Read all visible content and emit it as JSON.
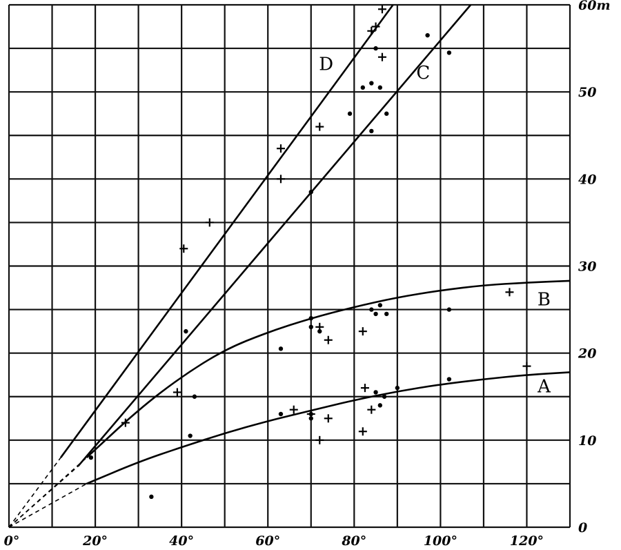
{
  "chart_data": {
    "type": "scatter",
    "title": "",
    "xlabel": "",
    "ylabel": "",
    "xlim": [
      0,
      130
    ],
    "ylim": [
      0,
      60
    ],
    "grid": true,
    "x_ticks": [
      "0°",
      "20°",
      "40°",
      "60°",
      "80°",
      "100°",
      "120°"
    ],
    "x_tick_values": [
      0,
      20,
      40,
      60,
      80,
      100,
      120
    ],
    "y_ticks": [
      "0",
      "10",
      "20",
      "30",
      "40",
      "50",
      "60m"
    ],
    "y_tick_values": [
      0,
      10,
      20,
      30,
      40,
      50,
      60
    ],
    "curves": [
      {
        "label": "A",
        "label_at": [
          124,
          15.5
        ],
        "x": [
          18,
          30,
          40,
          50,
          60,
          70,
          80,
          90,
          100,
          110,
          120,
          130
        ],
        "y": [
          5,
          7.5,
          9.2,
          10.8,
          12.2,
          13.4,
          14.6,
          15.6,
          16.4,
          17.0,
          17.5,
          17.8
        ],
        "dashed_from_origin": true
      },
      {
        "label": "B",
        "label_at": [
          124,
          25.5
        ],
        "x": [
          18,
          30,
          40,
          50,
          60,
          70,
          80,
          90,
          100,
          110,
          120,
          130
        ],
        "y": [
          8,
          13.5,
          17.3,
          20.4,
          22.4,
          24.0,
          25.3,
          26.4,
          27.2,
          27.8,
          28.1,
          28.3
        ],
        "dashed_from_origin": true
      },
      {
        "label": "C",
        "label_at": [
          96,
          51.5
        ],
        "x": [
          16,
          107
        ],
        "y": [
          7,
          60
        ],
        "dashed_from_origin": true
      },
      {
        "label": "D",
        "label_at": [
          73.5,
          52.5
        ],
        "x": [
          12,
          89
        ],
        "y": [
          8,
          60
        ],
        "dashed_from_origin": true
      }
    ],
    "points_dot": [
      [
        33,
        3.5
      ],
      [
        19,
        8
      ],
      [
        42,
        10.5
      ],
      [
        43,
        15
      ],
      [
        41,
        22.5
      ],
      [
        63,
        20.5
      ],
      [
        63,
        13
      ],
      [
        70,
        13
      ],
      [
        70,
        12.5
      ],
      [
        70,
        24
      ],
      [
        70,
        23
      ],
      [
        70,
        38.5
      ],
      [
        79,
        47.5
      ],
      [
        82,
        50.5
      ],
      [
        84,
        51
      ],
      [
        85,
        55
      ],
      [
        84,
        45.5
      ],
      [
        86,
        50.5
      ],
      [
        87.5,
        47.5
      ],
      [
        84,
        25
      ],
      [
        85,
        24.5
      ],
      [
        86,
        25.5
      ],
      [
        87.5,
        24.5
      ],
      [
        85,
        15.5
      ],
      [
        86,
        14
      ],
      [
        87,
        15
      ],
      [
        90,
        16
      ],
      [
        97,
        56.5
      ],
      [
        102,
        54.5
      ],
      [
        102,
        25
      ],
      [
        102,
        17
      ],
      [
        72,
        22.5
      ]
    ],
    "points_cross": [
      [
        27,
        12
      ],
      [
        39,
        15.5
      ],
      [
        40.5,
        32
      ],
      [
        46.5,
        35
      ],
      [
        63,
        43.5
      ],
      [
        63,
        40
      ],
      [
        72,
        46
      ],
      [
        66,
        13.5
      ],
      [
        70,
        13
      ],
      [
        72,
        10
      ],
      [
        74,
        12.5
      ],
      [
        74,
        21.5
      ],
      [
        72,
        23
      ],
      [
        82,
        22.5
      ],
      [
        82,
        11
      ],
      [
        82.5,
        16
      ],
      [
        84,
        13.5
      ],
      [
        84,
        57
      ],
      [
        85,
        57.5
      ],
      [
        86.5,
        59.5
      ],
      [
        86.5,
        54
      ],
      [
        116,
        27
      ],
      [
        120,
        18.5
      ]
    ]
  }
}
